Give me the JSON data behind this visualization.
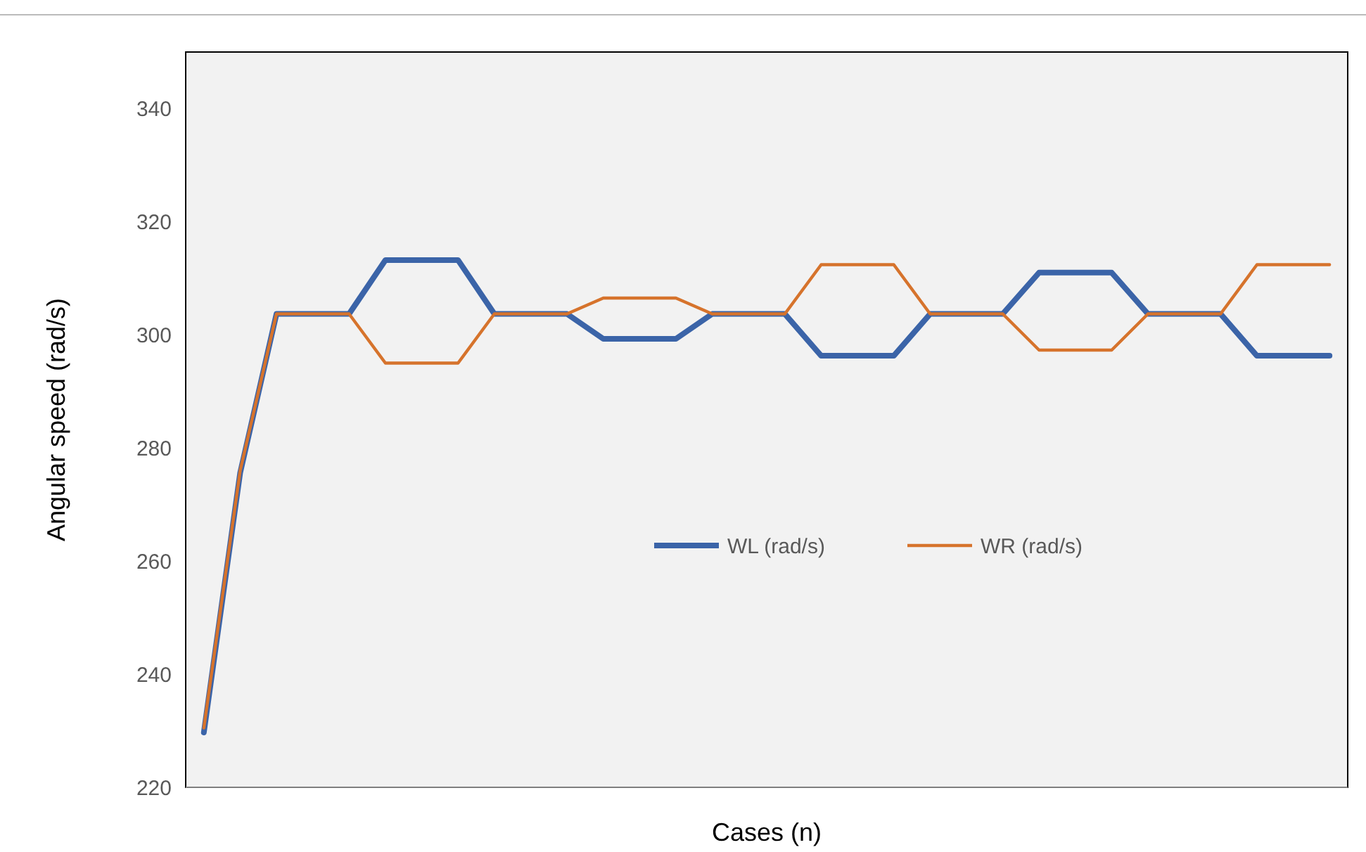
{
  "chart_data": {
    "type": "line",
    "xlabel": "Cases (n)",
    "ylabel": "Angular speed (rad/s)",
    "categories": [
      null,
      null,
      null,
      null,
      null,
      null,
      null,
      null,
      null,
      null,
      null,
      null,
      null,
      null,
      null,
      null,
      null,
      null,
      null,
      null,
      null,
      null,
      null,
      null,
      null,
      null,
      null,
      null,
      null,
      null,
      null,
      null
    ],
    "series": [
      {
        "name": "WL (rad/s)",
        "color": "#3b64a8",
        "values": [
          229.7,
          275.6,
          303.7,
          303.7,
          303.7,
          313.2,
          313.2,
          313.2,
          303.7,
          303.7,
          303.7,
          299.3,
          299.3,
          299.3,
          303.7,
          303.7,
          303.7,
          296.3,
          296.3,
          296.3,
          303.7,
          303.7,
          303.7,
          311,
          311,
          311,
          303.7,
          303.7,
          303.7,
          296.3,
          296.3,
          296.3
        ]
      },
      {
        "name": "WR (rad/s)",
        "color": "#d6732c",
        "values": [
          230.5,
          276,
          303.7,
          303.7,
          303.7,
          295,
          295,
          295,
          303.7,
          303.7,
          303.7,
          306.5,
          306.5,
          306.5,
          303.7,
          303.7,
          303.7,
          312.4,
          312.4,
          312.4,
          303.7,
          303.7,
          303.7,
          297.3,
          297.3,
          297.3,
          303.7,
          303.7,
          303.7,
          312.4,
          312.4,
          312.4
        ]
      }
    ],
    "ylim": [
      220,
      350
    ],
    "yticks": [
      220,
      240,
      260,
      280,
      300,
      320,
      340
    ],
    "grid": false,
    "legend": "right",
    "marker": "none",
    "line_style": "solid"
  }
}
